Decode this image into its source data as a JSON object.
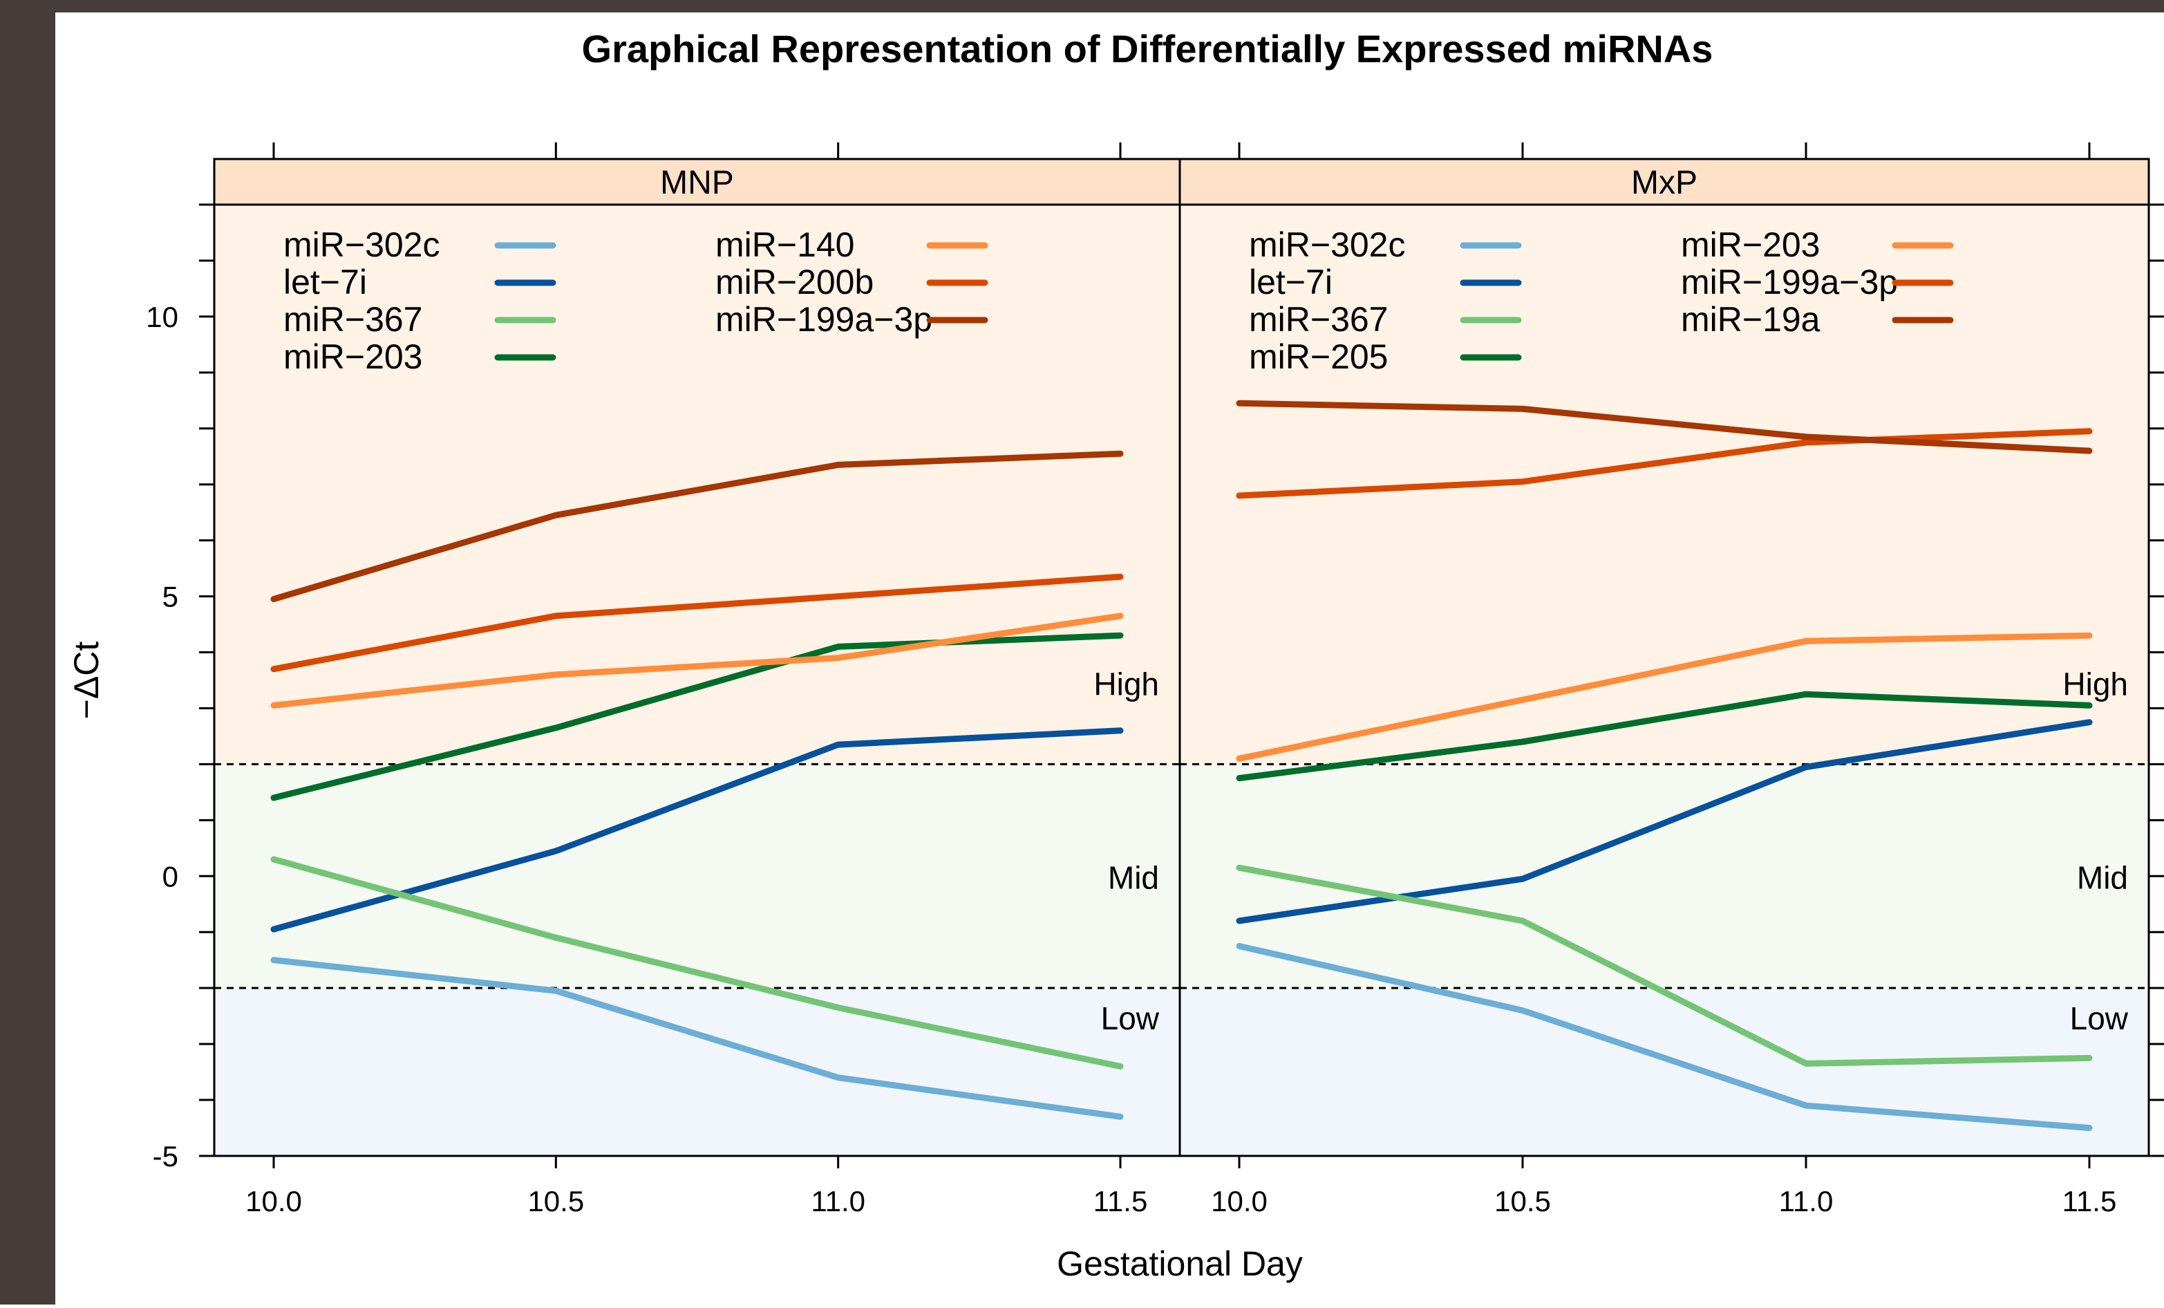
{
  "chart_data": {
    "type": "line",
    "title": "Graphical Representation of Differentially Expressed miRNAs",
    "xlabel": "Gestational Day",
    "ylabel": "−ΔCt",
    "x": [
      10.0,
      10.5,
      11.0,
      11.5
    ],
    "x_tick_labels": [
      "10.0",
      "10.5",
      "11.0",
      "11.5"
    ],
    "ylim": [
      -5,
      12
    ],
    "y_ticks": [
      -5,
      0,
      5,
      10
    ],
    "grid": false,
    "thresholds": [
      2,
      -2
    ],
    "zones": [
      {
        "label": "High",
        "from": 2,
        "to": 12,
        "color": "#fef3e6"
      },
      {
        "label": "Mid",
        "from": -2,
        "to": 2,
        "color": "#f4faf1"
      },
      {
        "label": "Low",
        "from": -5,
        "to": -2,
        "color": "#f1f6fc"
      }
    ],
    "panels": [
      {
        "name": "MNP",
        "legend": {
          "columns": [
            [
              "miR−302c",
              "let−7i",
              "miR−367",
              "miR−203"
            ],
            [
              "miR−140",
              "miR−200b",
              "miR−199a−3p"
            ]
          ]
        },
        "series": [
          {
            "name": "miR−302c",
            "color": "#6baed6",
            "values": [
              -1.5,
              -2.05,
              -3.6,
              -4.3
            ]
          },
          {
            "name": "let−7i",
            "color": "#08519c",
            "values": [
              -0.95,
              0.45,
              2.35,
              2.6
            ]
          },
          {
            "name": "miR−367",
            "color": "#74c476",
            "values": [
              0.3,
              -1.1,
              -2.35,
              -3.4
            ]
          },
          {
            "name": "miR−203",
            "color": "#006d2c",
            "values": [
              1.4,
              2.65,
              4.1,
              4.3
            ]
          },
          {
            "name": "miR−140",
            "color": "#fd8d3c",
            "values": [
              3.05,
              3.6,
              3.9,
              4.65
            ]
          },
          {
            "name": "miR−200b",
            "color": "#d94801",
            "values": [
              3.7,
              4.65,
              5.0,
              5.35
            ]
          },
          {
            "name": "miR−199a−3p",
            "color": "#a63603",
            "values": [
              4.95,
              6.45,
              7.35,
              7.55
            ]
          }
        ]
      },
      {
        "name": "MxP",
        "legend": {
          "columns": [
            [
              "miR−302c",
              "let−7i",
              "miR−367",
              "miR−205"
            ],
            [
              "miR−203",
              "miR−199a−3p",
              "miR−19a"
            ]
          ]
        },
        "series": [
          {
            "name": "miR−302c",
            "color": "#6baed6",
            "values": [
              -1.25,
              -2.4,
              -4.1,
              -4.5
            ]
          },
          {
            "name": "let−7i",
            "color": "#08519c",
            "values": [
              -0.8,
              -0.05,
              1.95,
              2.75
            ]
          },
          {
            "name": "miR−367",
            "color": "#74c476",
            "values": [
              0.15,
              -0.8,
              -3.35,
              -3.25
            ]
          },
          {
            "name": "miR−205",
            "color": "#006d2c",
            "values": [
              1.75,
              2.4,
              3.25,
              3.05
            ]
          },
          {
            "name": "miR−203",
            "color": "#fd8d3c",
            "values": [
              2.1,
              3.15,
              4.2,
              4.3
            ]
          },
          {
            "name": "miR−199a−3p",
            "color": "#d94801",
            "values": [
              6.8,
              7.05,
              7.75,
              7.95
            ]
          },
          {
            "name": "miR−19a",
            "color": "#a63603",
            "values": [
              8.45,
              8.35,
              7.85,
              7.6
            ]
          }
        ]
      }
    ]
  },
  "colors": {
    "page_border": "#473d3b",
    "strip": "#fde1c8"
  }
}
